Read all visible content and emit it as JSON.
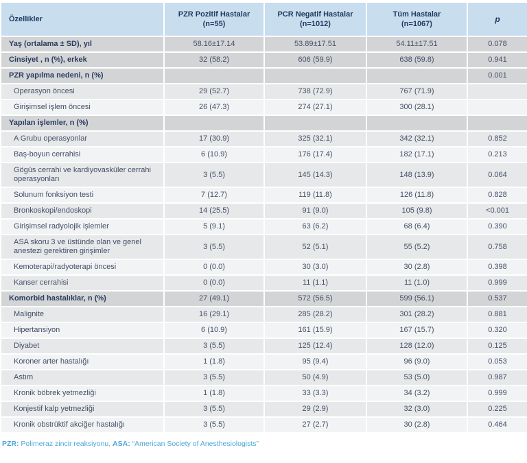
{
  "table": {
    "columns": [
      {
        "label": "Özellikler"
      },
      {
        "label": "PZR Pozitif Hastalar\n(n=55)"
      },
      {
        "label": "PCR Negatif Hastalar\n(n=1012)"
      },
      {
        "label": "Tüm Hastalar\n(n=1067)"
      },
      {
        "label": "p"
      }
    ],
    "rows": [
      {
        "label": "Yaş (ortalama ± SD), yıl",
        "level": "section",
        "shade": "section",
        "values": [
          "58.16±17.14",
          "53.89±17.51",
          "54.11±17.51",
          "0.078"
        ]
      },
      {
        "label": "Cinsiyet , n (%), erkek",
        "level": "section",
        "shade": "section",
        "values": [
          "32 (58.2)",
          "606 (59.9)",
          "638 (59.8)",
          "0.941"
        ]
      },
      {
        "label": "PZR yapılma nedeni, n (%)",
        "level": "section",
        "shade": "section",
        "values": [
          "",
          "",
          "",
          "0.001"
        ]
      },
      {
        "label": "Operasyon öncesi",
        "level": "sub",
        "shade": "a",
        "values": [
          "29 (52.7)",
          "738 (72.9)",
          "767 (71.9)",
          ""
        ]
      },
      {
        "label": "Girişimsel işlem öncesi",
        "level": "sub",
        "shade": "b",
        "values": [
          "26 (47.3)",
          "274 (27.1)",
          "300 (28.1)",
          ""
        ]
      },
      {
        "label": "Yapılan işlemler, n (%)",
        "level": "section",
        "shade": "section",
        "values": [
          "",
          "",
          "",
          ""
        ]
      },
      {
        "label": "A Grubu operasyonlar",
        "level": "sub",
        "shade": "a",
        "values": [
          "17 (30.9)",
          "325 (32.1)",
          "342 (32.1)",
          "0.852"
        ]
      },
      {
        "label": "Baş-boyun cerrahisi",
        "level": "sub",
        "shade": "b",
        "values": [
          "6 (10.9)",
          "176 (17.4)",
          "182 (17.1)",
          "0.213"
        ]
      },
      {
        "label": "Gögüs cerrahi ve kardiyovasküler cerrahi operasyonları",
        "level": "sub",
        "shade": "a",
        "values": [
          "3 (5.5)",
          "145 (14.3)",
          "148 (13.9)",
          "0.064"
        ]
      },
      {
        "label": "Solunum fonksiyon testi",
        "level": "sub",
        "shade": "b",
        "values": [
          "7 (12.7)",
          "119 (11.8)",
          "126 (11.8)",
          "0.828"
        ]
      },
      {
        "label": "Bronkoskopi/endoskopi",
        "level": "sub",
        "shade": "a",
        "values": [
          "14 (25.5)",
          "91 (9.0)",
          "105 (9.8)",
          "<0.001"
        ]
      },
      {
        "label": "Girişimsel radyolojik işlemler",
        "level": "sub",
        "shade": "b",
        "values": [
          "5 (9.1)",
          "63 (6.2)",
          "68 (6.4)",
          "0.390"
        ]
      },
      {
        "label": "ASA skoru 3 ve üstünde olan ve genel anestezi gerektiren girişimler",
        "level": "sub",
        "shade": "a",
        "values": [
          "3 (5.5)",
          "52 (5.1)",
          "55 (5.2)",
          "0.758"
        ]
      },
      {
        "label": "Kemoterapi/radyoterapi öncesi",
        "level": "sub",
        "shade": "b",
        "values": [
          "0 (0.0)",
          "30 (3.0)",
          "30 (2.8)",
          "0.398"
        ]
      },
      {
        "label": "Kanser cerrahisi",
        "level": "sub",
        "shade": "a",
        "values": [
          "0 (0.0)",
          "11 (1.1)",
          "11 (1.0)",
          "0.999"
        ]
      },
      {
        "label": "Komorbid hastalıklar, n (%)",
        "level": "section",
        "shade": "section",
        "values": [
          "27 (49.1)",
          "572 (56.5)",
          "599 (56.1)",
          "0.537"
        ]
      },
      {
        "label": "Malignite",
        "level": "sub",
        "shade": "a",
        "values": [
          "16 (29.1)",
          "285 (28.2)",
          "301 (28.2)",
          "0.881"
        ]
      },
      {
        "label": "Hipertansiyon",
        "level": "sub",
        "shade": "b",
        "values": [
          "6 (10.9)",
          "161 (15.9)",
          "167 (15.7)",
          "0.320"
        ]
      },
      {
        "label": "Diyabet",
        "level": "sub",
        "shade": "a",
        "values": [
          "3 (5.5)",
          "125 (12.4)",
          "128 (12.0)",
          "0.125"
        ]
      },
      {
        "label": "Koroner arter hastalığı",
        "level": "sub",
        "shade": "b",
        "values": [
          "1 (1.8)",
          "95 (9.4)",
          "96 (9.0)",
          "0.053"
        ]
      },
      {
        "label": "Astım",
        "level": "sub",
        "shade": "a",
        "values": [
          "3 (5.5)",
          "50 (4.9)",
          "53 (5.0)",
          "0.987"
        ]
      },
      {
        "label": "Kronik böbrek yetmezliği",
        "level": "sub",
        "shade": "b",
        "values": [
          "1 (1.8)",
          "33 (3.3)",
          "34 (3.2)",
          "0.999"
        ]
      },
      {
        "label": "Konjestif kalp yetmezliği",
        "level": "sub",
        "shade": "a",
        "values": [
          "3 (5.5)",
          "29 (2.9)",
          "32 (3.0)",
          "0.225"
        ]
      },
      {
        "label": "Kronik obstrüktif akciğer hastalığı",
        "level": "sub",
        "shade": "b",
        "values": [
          "3 (5.5)",
          "27 (2.7)",
          "30 (2.8)",
          "0.464"
        ]
      }
    ]
  },
  "footnote": {
    "segments": [
      {
        "text": "PZR:",
        "bold": true
      },
      {
        "text": " Polimeraz zincir reaksiyonu, ",
        "bold": false
      },
      {
        "text": "ASA:",
        "bold": true
      },
      {
        "text": " “American Society of Anesthesiologists”",
        "bold": false
      }
    ]
  },
  "colors": {
    "header_bg": "#c8ddee",
    "section_bg": "#d3d4d6",
    "row_a_bg": "#e6e8e9",
    "row_b_bg": "#f1f3f4",
    "header_text": "#1e3a5f",
    "section_text": "#2a3d5f",
    "body_text": "#454f68",
    "footnote_text": "#4ba7da"
  }
}
